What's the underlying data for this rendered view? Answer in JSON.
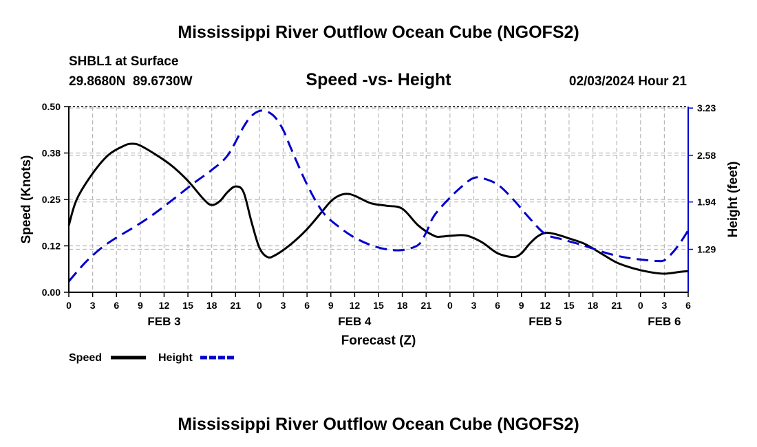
{
  "page": {
    "title_top": "Mississippi River Outflow Ocean Cube (NGOFS2)",
    "title_bottom": "Mississippi River Outflow Ocean Cube (NGOFS2)"
  },
  "header": {
    "station": "SHBL1 at Surface",
    "coords": "29.8680N  89.6730W",
    "chart_title": "Speed -vs- Height",
    "datetime": "02/03/2024 Hour 21"
  },
  "colors": {
    "speed": "#000000",
    "height": "#0000cc",
    "grid": "#b8b8b8",
    "frame": "#000000"
  },
  "chart_data": {
    "type": "line",
    "title": "Speed -vs- Height",
    "xlabel": "Forecast (Z)",
    "ylabel": "Speed (Knots)",
    "y2label": "Height (feet)",
    "x_unit": "hours since FEB 3 00Z",
    "xlim": [
      0,
      78
    ],
    "ylim": [
      0,
      0.5
    ],
    "y2lim": [
      0.7,
      3.25
    ],
    "x_ticks": [
      0,
      3,
      6,
      9,
      12,
      15,
      18,
      21,
      24,
      27,
      30,
      33,
      36,
      39,
      42,
      45,
      48,
      51,
      54,
      57,
      60,
      63,
      66,
      69,
      72,
      75,
      78
    ],
    "x_tick_labels": [
      "0",
      "3",
      "6",
      "9",
      "12",
      "15",
      "18",
      "21",
      "0",
      "3",
      "6",
      "9",
      "12",
      "15",
      "18",
      "21",
      "0",
      "3",
      "6",
      "9",
      "12",
      "15",
      "18",
      "21",
      "0",
      "3",
      "6"
    ],
    "y_ticks": [
      0.0,
      0.125,
      0.25,
      0.375,
      0.5
    ],
    "y_tick_labels": [
      "0.00",
      "0.12",
      "0.25",
      "0.38",
      "0.50"
    ],
    "y2_ticks": [
      1.29,
      1.94,
      2.58,
      3.23
    ],
    "y2_tick_labels": [
      "1.29",
      "1.94",
      "2.58",
      "3.23"
    ],
    "day_labels": [
      {
        "text": "FEB 3",
        "x": 12
      },
      {
        "text": "FEB 4",
        "x": 36
      },
      {
        "text": "FEB 5",
        "x": 60
      },
      {
        "text": "FEB 6",
        "x": 75
      }
    ],
    "series": [
      {
        "name": "Speed",
        "axis": "left",
        "style": "solid",
        "x": [
          0,
          1,
          3,
          5,
          7,
          8,
          9,
          11,
          13,
          15,
          17,
          18,
          19,
          20,
          21,
          22,
          23,
          24,
          25,
          26,
          28,
          30,
          32,
          33,
          34,
          35,
          36,
          38,
          40,
          42,
          44,
          46,
          47,
          48,
          50,
          52,
          54,
          56,
          57,
          58,
          59,
          60,
          61,
          62,
          63,
          65,
          67,
          69,
          71,
          73,
          75,
          77,
          78
        ],
        "values": [
          0.18,
          0.25,
          0.32,
          0.37,
          0.395,
          0.4,
          0.395,
          0.37,
          0.34,
          0.3,
          0.25,
          0.235,
          0.245,
          0.27,
          0.285,
          0.27,
          0.19,
          0.12,
          0.095,
          0.1,
          0.13,
          0.17,
          0.22,
          0.245,
          0.26,
          0.265,
          0.26,
          0.24,
          0.233,
          0.225,
          0.18,
          0.152,
          0.15,
          0.152,
          0.153,
          0.135,
          0.105,
          0.095,
          0.105,
          0.13,
          0.15,
          0.16,
          0.158,
          0.152,
          0.145,
          0.13,
          0.105,
          0.08,
          0.065,
          0.055,
          0.05,
          0.055,
          0.057
        ]
      },
      {
        "name": "Height",
        "axis": "right",
        "style": "dashed",
        "x": [
          0,
          2,
          4,
          6,
          8,
          10,
          12,
          14,
          16,
          18,
          20,
          22,
          23,
          24,
          25,
          26,
          27,
          28,
          30,
          32,
          34,
          36,
          38,
          40,
          42,
          44,
          45,
          46,
          48,
          50,
          51,
          52,
          54,
          56,
          58,
          60,
          62,
          64,
          66,
          68,
          70,
          72,
          74,
          75,
          76,
          77,
          78
        ],
        "values": [
          0.85,
          1.1,
          1.3,
          1.45,
          1.58,
          1.72,
          1.88,
          2.05,
          2.22,
          2.38,
          2.58,
          2.97,
          3.12,
          3.19,
          3.18,
          3.1,
          2.93,
          2.67,
          2.18,
          1.8,
          1.6,
          1.45,
          1.35,
          1.29,
          1.28,
          1.35,
          1.52,
          1.75,
          2.0,
          2.2,
          2.27,
          2.27,
          2.18,
          1.97,
          1.72,
          1.5,
          1.43,
          1.37,
          1.3,
          1.23,
          1.18,
          1.15,
          1.13,
          1.14,
          1.24,
          1.38,
          1.55
        ]
      }
    ],
    "legend": [
      {
        "label": "Speed",
        "style": "solid"
      },
      {
        "label": "Height",
        "style": "dashed"
      }
    ],
    "legend_position": "bottom-left",
    "grid": true
  }
}
